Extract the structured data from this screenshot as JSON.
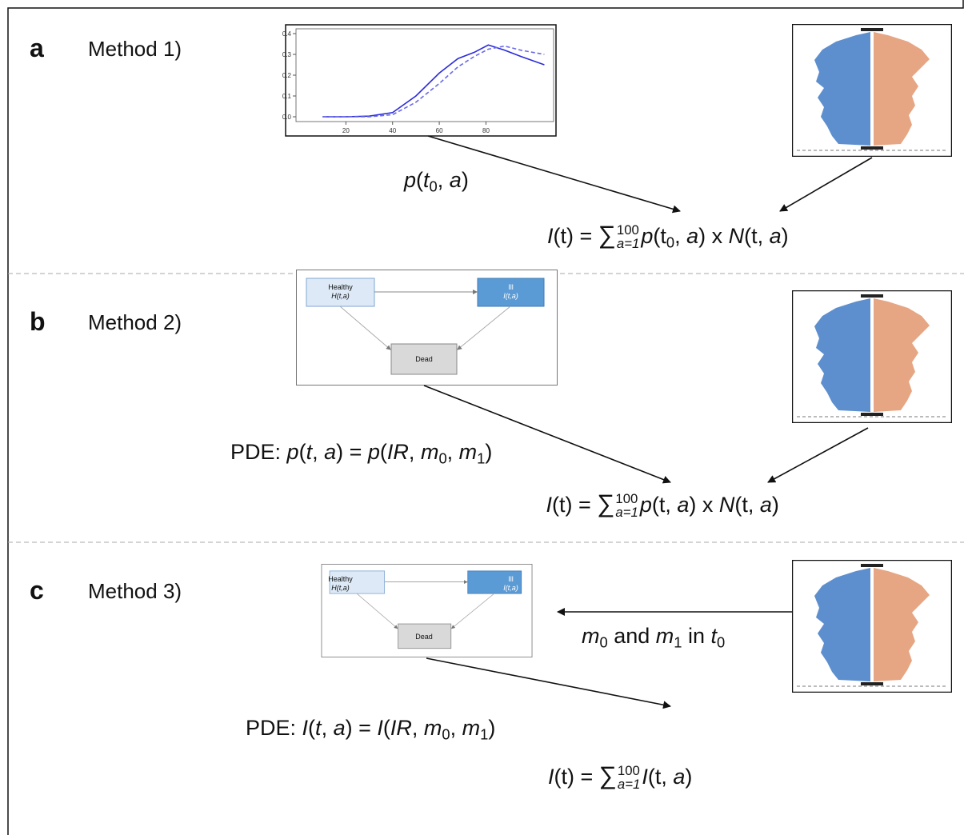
{
  "panels": [
    {
      "letter": "a",
      "method": "Method 1)",
      "mini_chart": {
        "type": "line",
        "x": [
          10,
          20,
          30,
          40,
          50,
          60,
          68,
          75,
          81,
          88,
          95,
          105
        ],
        "series": [
          {
            "color": "#2b2bdc",
            "dashed": false,
            "values": [
              0,
              0,
              0.003,
              0.02,
              0.1,
              0.21,
              0.28,
              0.31,
              0.345,
              0.32,
              0.29,
              0.25
            ]
          },
          {
            "color": "#6a6ae6",
            "dashed": true,
            "values": [
              0,
              0,
              0,
              0.01,
              0.07,
              0.16,
              0.24,
              0.29,
              0.325,
              0.34,
              0.32,
              0.3
            ]
          }
        ],
        "xlim": [
          0,
          110
        ],
        "ylim": [
          -0.02,
          0.42
        ],
        "xticks": [
          20,
          40,
          60,
          80
        ],
        "yticks": [
          {
            "value": 0,
            "label": "0.0"
          },
          0.1,
          0.2,
          0.3,
          0.4
        ]
      },
      "arrow_label": [
        {
          "italic": "p"
        },
        {
          "text": "("
        },
        {
          "italic": "t"
        },
        {
          "sub": "0"
        },
        {
          "text": ", "
        },
        {
          "italic": "a"
        },
        {
          "text": ")"
        }
      ],
      "formula": [
        {
          "italic": "I"
        },
        {
          "text": "(t) = "
        },
        {
          "sum": "∑",
          "upper": "100",
          "lower": "a=1"
        },
        {
          "italic": "p"
        },
        {
          "text": "(t"
        },
        {
          "sub": "0"
        },
        {
          "text": ", "
        },
        {
          "italic": "a"
        },
        {
          "text": ") x "
        },
        {
          "italic": "N"
        },
        {
          "text": "(t, "
        },
        {
          "italic": "a"
        },
        {
          "text": ")"
        }
      ]
    },
    {
      "letter": "b",
      "method": "Method 2)",
      "diagram": {
        "nodes": [
          {
            "label": "Healthy",
            "sublabel": "H(t,a)"
          },
          {
            "label": "Ill",
            "sublabel": "I(t,a)"
          },
          {
            "label": "Dead"
          }
        ]
      },
      "arrow_label": [
        {
          "text": "PDE: "
        },
        {
          "italic": "p"
        },
        {
          "text": "("
        },
        {
          "italic": "t"
        },
        {
          "text": ", "
        },
        {
          "italic": "a"
        },
        {
          "text": ") = "
        },
        {
          "italic": "p"
        },
        {
          "text": "("
        },
        {
          "italic": "IR"
        },
        {
          "text": ", "
        },
        {
          "italic": "m"
        },
        {
          "sub": "0"
        },
        {
          "text": ", "
        },
        {
          "italic": "m"
        },
        {
          "sub": "1"
        },
        {
          "text": ")"
        }
      ],
      "formula": [
        {
          "italic": "I"
        },
        {
          "text": "(t) = "
        },
        {
          "sum": "∑",
          "upper": "100",
          "lower": "a=1"
        },
        {
          "italic": "p"
        },
        {
          "text": "(t, "
        },
        {
          "italic": "a"
        },
        {
          "text": ") x "
        },
        {
          "italic": "N"
        },
        {
          "text": "(t, "
        },
        {
          "italic": "a"
        },
        {
          "text": ")"
        }
      ]
    },
    {
      "letter": "c",
      "method": "Method 3)",
      "diagram": {
        "nodes": [
          {
            "label": "Healthy",
            "sublabel": "H(t,a)"
          },
          {
            "label": "Ill",
            "sublabel": "I(t,a)"
          },
          {
            "label": "Dead"
          }
        ]
      },
      "side_label": [
        {
          "italic": "m"
        },
        {
          "sub": "0"
        },
        {
          "text": " and "
        },
        {
          "italic": "m"
        },
        {
          "sub": "1"
        },
        {
          "text": " in "
        },
        {
          "italic": "t"
        },
        {
          "sub": "0"
        }
      ],
      "arrow_label": [
        {
          "text": "PDE: "
        },
        {
          "italic": "I"
        },
        {
          "text": "("
        },
        {
          "italic": "t"
        },
        {
          "text": ", "
        },
        {
          "italic": "a"
        },
        {
          "text": ") = "
        },
        {
          "italic": "I"
        },
        {
          "text": "("
        },
        {
          "italic": "IR"
        },
        {
          "text": ", "
        },
        {
          "italic": "m"
        },
        {
          "sub": "0"
        },
        {
          "text": ", "
        },
        {
          "italic": "m"
        },
        {
          "sub": "1"
        },
        {
          "text": ")"
        }
      ],
      "formula": [
        {
          "italic": "I"
        },
        {
          "text": "(t) = "
        },
        {
          "sum": "∑",
          "upper": "100",
          "lower": "a=1"
        },
        {
          "italic": "I"
        },
        {
          "text": "(t, "
        },
        {
          "italic": "a"
        },
        {
          "text": ")"
        }
      ]
    }
  ]
}
